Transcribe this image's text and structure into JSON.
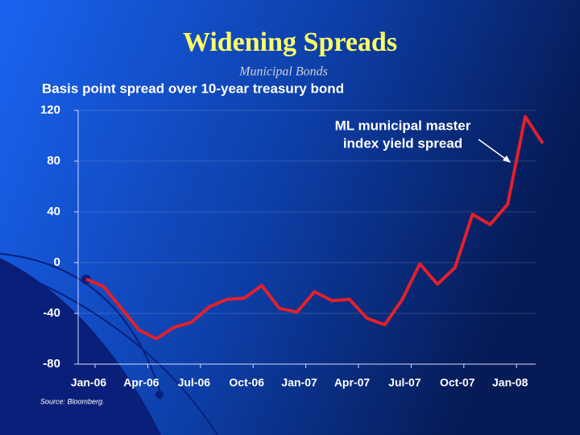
{
  "chart_data": {
    "type": "line",
    "title": "Widening Spreads",
    "subtitle": "Municipal Bonds",
    "y_label": "Basis point spread over 10-year treasury bond",
    "annotation": [
      "ML municipal master",
      "index yield spread"
    ],
    "source": "Source: Bloomberg.",
    "categories": [
      "Jan-06",
      null,
      null,
      "Apr-06",
      null,
      null,
      "Jul-06",
      null,
      null,
      "Oct-06",
      null,
      null,
      "Jan-07",
      null,
      null,
      "Apr-07",
      null,
      null,
      "Jul-07",
      null,
      null,
      "Oct-07",
      null,
      null,
      "Jan-08",
      null,
      null
    ],
    "series": [
      {
        "color": "#e3202b",
        "values": [
          -13,
          -19,
          -36,
          -53,
          -60,
          -51,
          -47,
          -35,
          -29,
          -28,
          -18,
          -36,
          -39,
          -23,
          -30,
          -29,
          -44,
          -49,
          -29,
          -1,
          -17,
          -4,
          38,
          30,
          46,
          115,
          94
        ]
      }
    ],
    "ylim": [
      -80,
      120
    ],
    "yticks": [
      -80,
      -40,
      0,
      40,
      80,
      120
    ]
  }
}
